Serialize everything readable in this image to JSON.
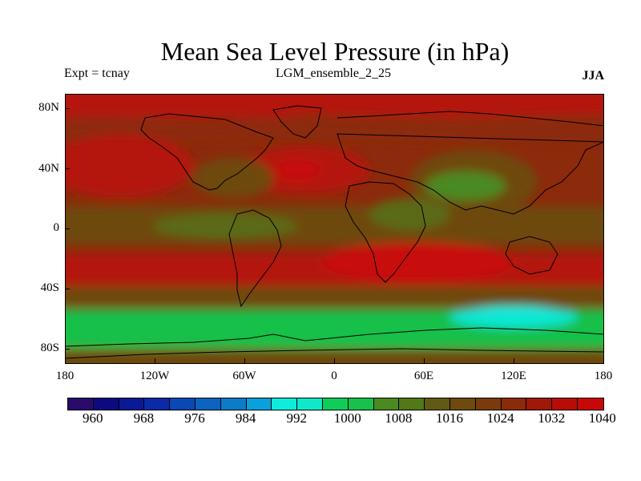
{
  "title": "Mean Sea Level Pressure (in hPa)",
  "subtitle_left": "Expt = tcnay",
  "subtitle_center": "LGM_ensemble_2_25",
  "subtitle_right": "JJA",
  "y_axis_labels": [
    "80N",
    "40N",
    "0",
    "40S",
    "80S"
  ],
  "x_axis_labels": [
    "180",
    "120W",
    "60W",
    "0",
    "60E",
    "120E",
    "180"
  ],
  "colorbar": {
    "colors": [
      "#2a0a6a",
      "#0c0a7e",
      "#0a1a96",
      "#0a2aa8",
      "#0a48b4",
      "#0a64c0",
      "#0c7cc8",
      "#0aa0dc",
      "#10ecdc",
      "#10e8c8",
      "#10cc58",
      "#18c04c",
      "#4a8a20",
      "#527818",
      "#605a14",
      "#6e4a10",
      "#7a3a0c",
      "#8a2c0a",
      "#a01808",
      "#b80c08",
      "#c80808"
    ],
    "labels": [
      "960",
      "968",
      "976",
      "984",
      "992",
      "1000",
      "1008",
      "1016",
      "1024",
      "1032",
      "1040"
    ],
    "units": "hPa"
  },
  "map_colors": {
    "high": "#b41408",
    "high_mid": "#8c2a0c",
    "mid": "#6e480f",
    "mid_low": "#5a6a18",
    "low_green": "#18c048",
    "low_green2": "#10cc60",
    "cyan": "#10e8d4",
    "coast": "#000000"
  }
}
